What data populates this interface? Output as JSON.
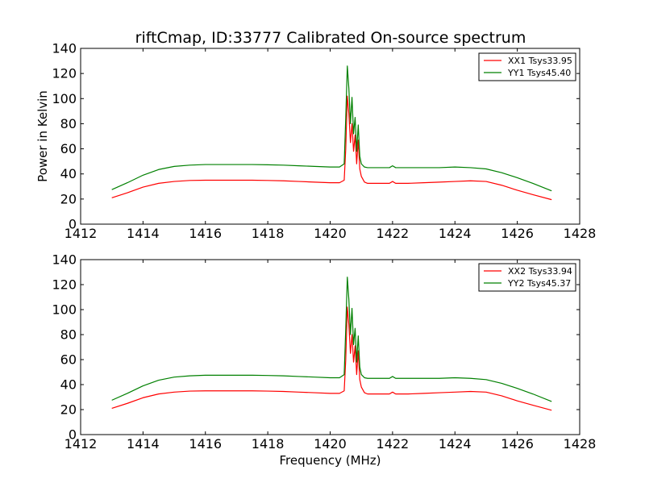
{
  "figure": {
    "title": "riftCmap, ID:33777 Calibrated On-source spectrum"
  },
  "chart_data": [
    {
      "type": "line",
      "title": "riftCmap, ID:33777 Calibrated On-source spectrum",
      "xlabel": "",
      "ylabel": "Power in Kelvin",
      "xlim": [
        1412,
        1428
      ],
      "ylim": [
        0,
        140
      ],
      "xticks": [
        "1412",
        "1414",
        "1416",
        "1418",
        "1420",
        "1422",
        "1424",
        "1426",
        "1428"
      ],
      "yticks": [
        "0",
        "20",
        "40",
        "60",
        "80",
        "100",
        "120",
        "140"
      ],
      "grid": false,
      "legend_position": "top-right",
      "series": [
        {
          "name": "XX1 Tsys33.95",
          "color": "#ff0000",
          "x": [
            1413.0,
            1413.5,
            1414.0,
            1414.5,
            1415.0,
            1415.5,
            1416.0,
            1416.5,
            1417.0,
            1417.5,
            1418.0,
            1418.5,
            1419.0,
            1419.5,
            1420.0,
            1420.3,
            1420.45,
            1420.5,
            1420.55,
            1420.6,
            1420.65,
            1420.7,
            1420.75,
            1420.8,
            1420.85,
            1420.9,
            1420.95,
            1421.0,
            1421.1,
            1421.2,
            1421.5,
            1421.9,
            1422.0,
            1422.1,
            1422.5,
            1423.0,
            1423.5,
            1424.0,
            1424.5,
            1425.0,
            1425.5,
            1426.0,
            1426.5,
            1427.1
          ],
          "y": [
            21,
            25,
            29.5,
            32.5,
            34,
            34.8,
            35,
            35,
            35,
            35,
            34.8,
            34.5,
            34,
            33.5,
            33,
            33,
            35,
            60,
            102,
            88,
            65,
            80,
            58,
            71,
            48,
            67,
            44,
            38,
            33.5,
            32.5,
            32.5,
            32.5,
            34,
            32.5,
            32.5,
            33,
            33.5,
            34,
            34.5,
            34,
            31,
            27,
            23.5,
            19.5
          ]
        },
        {
          "name": "YY1 Tsys45.40",
          "color": "#008000",
          "x": [
            1413.0,
            1413.5,
            1414.0,
            1414.5,
            1415.0,
            1415.5,
            1416.0,
            1416.5,
            1417.0,
            1417.5,
            1418.0,
            1418.5,
            1419.0,
            1419.5,
            1420.0,
            1420.3,
            1420.45,
            1420.5,
            1420.55,
            1420.6,
            1420.65,
            1420.7,
            1420.75,
            1420.8,
            1420.85,
            1420.9,
            1420.95,
            1421.0,
            1421.1,
            1421.2,
            1421.5,
            1421.9,
            1422.0,
            1422.1,
            1422.5,
            1423.0,
            1423.5,
            1424.0,
            1424.5,
            1425.0,
            1425.5,
            1426.0,
            1426.5,
            1427.1
          ],
          "y": [
            27.5,
            33,
            39,
            43.5,
            46,
            47,
            47.5,
            47.5,
            47.5,
            47.5,
            47.3,
            47,
            46.5,
            46,
            45.5,
            45.5,
            48,
            85,
            126,
            108,
            80,
            101,
            72,
            85,
            58,
            79,
            54,
            48,
            45.5,
            45,
            45,
            45,
            46.5,
            45,
            45,
            45,
            45,
            45.5,
            45,
            44,
            41,
            37,
            32.5,
            26.5
          ]
        }
      ]
    },
    {
      "type": "line",
      "title": "",
      "xlabel": "Frequency (MHz)",
      "ylabel": "",
      "xlim": [
        1412,
        1428
      ],
      "ylim": [
        0,
        140
      ],
      "xticks": [
        "1412",
        "1414",
        "1416",
        "1418",
        "1420",
        "1422",
        "1424",
        "1426",
        "1428"
      ],
      "yticks": [
        "0",
        "20",
        "40",
        "60",
        "80",
        "100",
        "120",
        "140"
      ],
      "grid": false,
      "legend_position": "top-right",
      "series": [
        {
          "name": "XX2 Tsys33.94",
          "color": "#ff0000",
          "x": [
            1413.0,
            1413.5,
            1414.0,
            1414.5,
            1415.0,
            1415.5,
            1416.0,
            1416.5,
            1417.0,
            1417.5,
            1418.0,
            1418.5,
            1419.0,
            1419.5,
            1420.0,
            1420.3,
            1420.45,
            1420.5,
            1420.55,
            1420.6,
            1420.65,
            1420.7,
            1420.75,
            1420.8,
            1420.85,
            1420.9,
            1420.95,
            1421.0,
            1421.1,
            1421.2,
            1421.5,
            1421.9,
            1422.0,
            1422.1,
            1422.5,
            1423.0,
            1423.5,
            1424.0,
            1424.5,
            1425.0,
            1425.5,
            1426.0,
            1426.5,
            1427.1
          ],
          "y": [
            21,
            25,
            29.5,
            32.5,
            34,
            34.8,
            35,
            35,
            35,
            35,
            34.8,
            34.5,
            34,
            33.5,
            33,
            33,
            35,
            60,
            102,
            88,
            65,
            80,
            58,
            71,
            48,
            67,
            44,
            38,
            33.5,
            32.5,
            32.5,
            32.5,
            34,
            32.5,
            32.5,
            33,
            33.5,
            34,
            34.5,
            34,
            31,
            27,
            23.5,
            19.5
          ]
        },
        {
          "name": "YY2 Tsys45.37",
          "color": "#008000",
          "x": [
            1413.0,
            1413.5,
            1414.0,
            1414.5,
            1415.0,
            1415.5,
            1416.0,
            1416.5,
            1417.0,
            1417.5,
            1418.0,
            1418.5,
            1419.0,
            1419.5,
            1420.0,
            1420.3,
            1420.45,
            1420.5,
            1420.55,
            1420.6,
            1420.65,
            1420.7,
            1420.75,
            1420.8,
            1420.85,
            1420.9,
            1420.95,
            1421.0,
            1421.1,
            1421.2,
            1421.5,
            1421.9,
            1422.0,
            1422.1,
            1422.5,
            1423.0,
            1423.5,
            1424.0,
            1424.5,
            1425.0,
            1425.5,
            1426.0,
            1426.5,
            1427.1
          ],
          "y": [
            27.5,
            33,
            39,
            43.5,
            46,
            47,
            47.5,
            47.5,
            47.5,
            47.5,
            47.3,
            47,
            46.5,
            46,
            45.5,
            45.5,
            48,
            85,
            126,
            108,
            80,
            101,
            72,
            85,
            58,
            79,
            54,
            48,
            45.5,
            45,
            45,
            45,
            46.5,
            45,
            45,
            45,
            45,
            45.5,
            45,
            44,
            41,
            37,
            32.5,
            26.5
          ]
        }
      ]
    }
  ]
}
